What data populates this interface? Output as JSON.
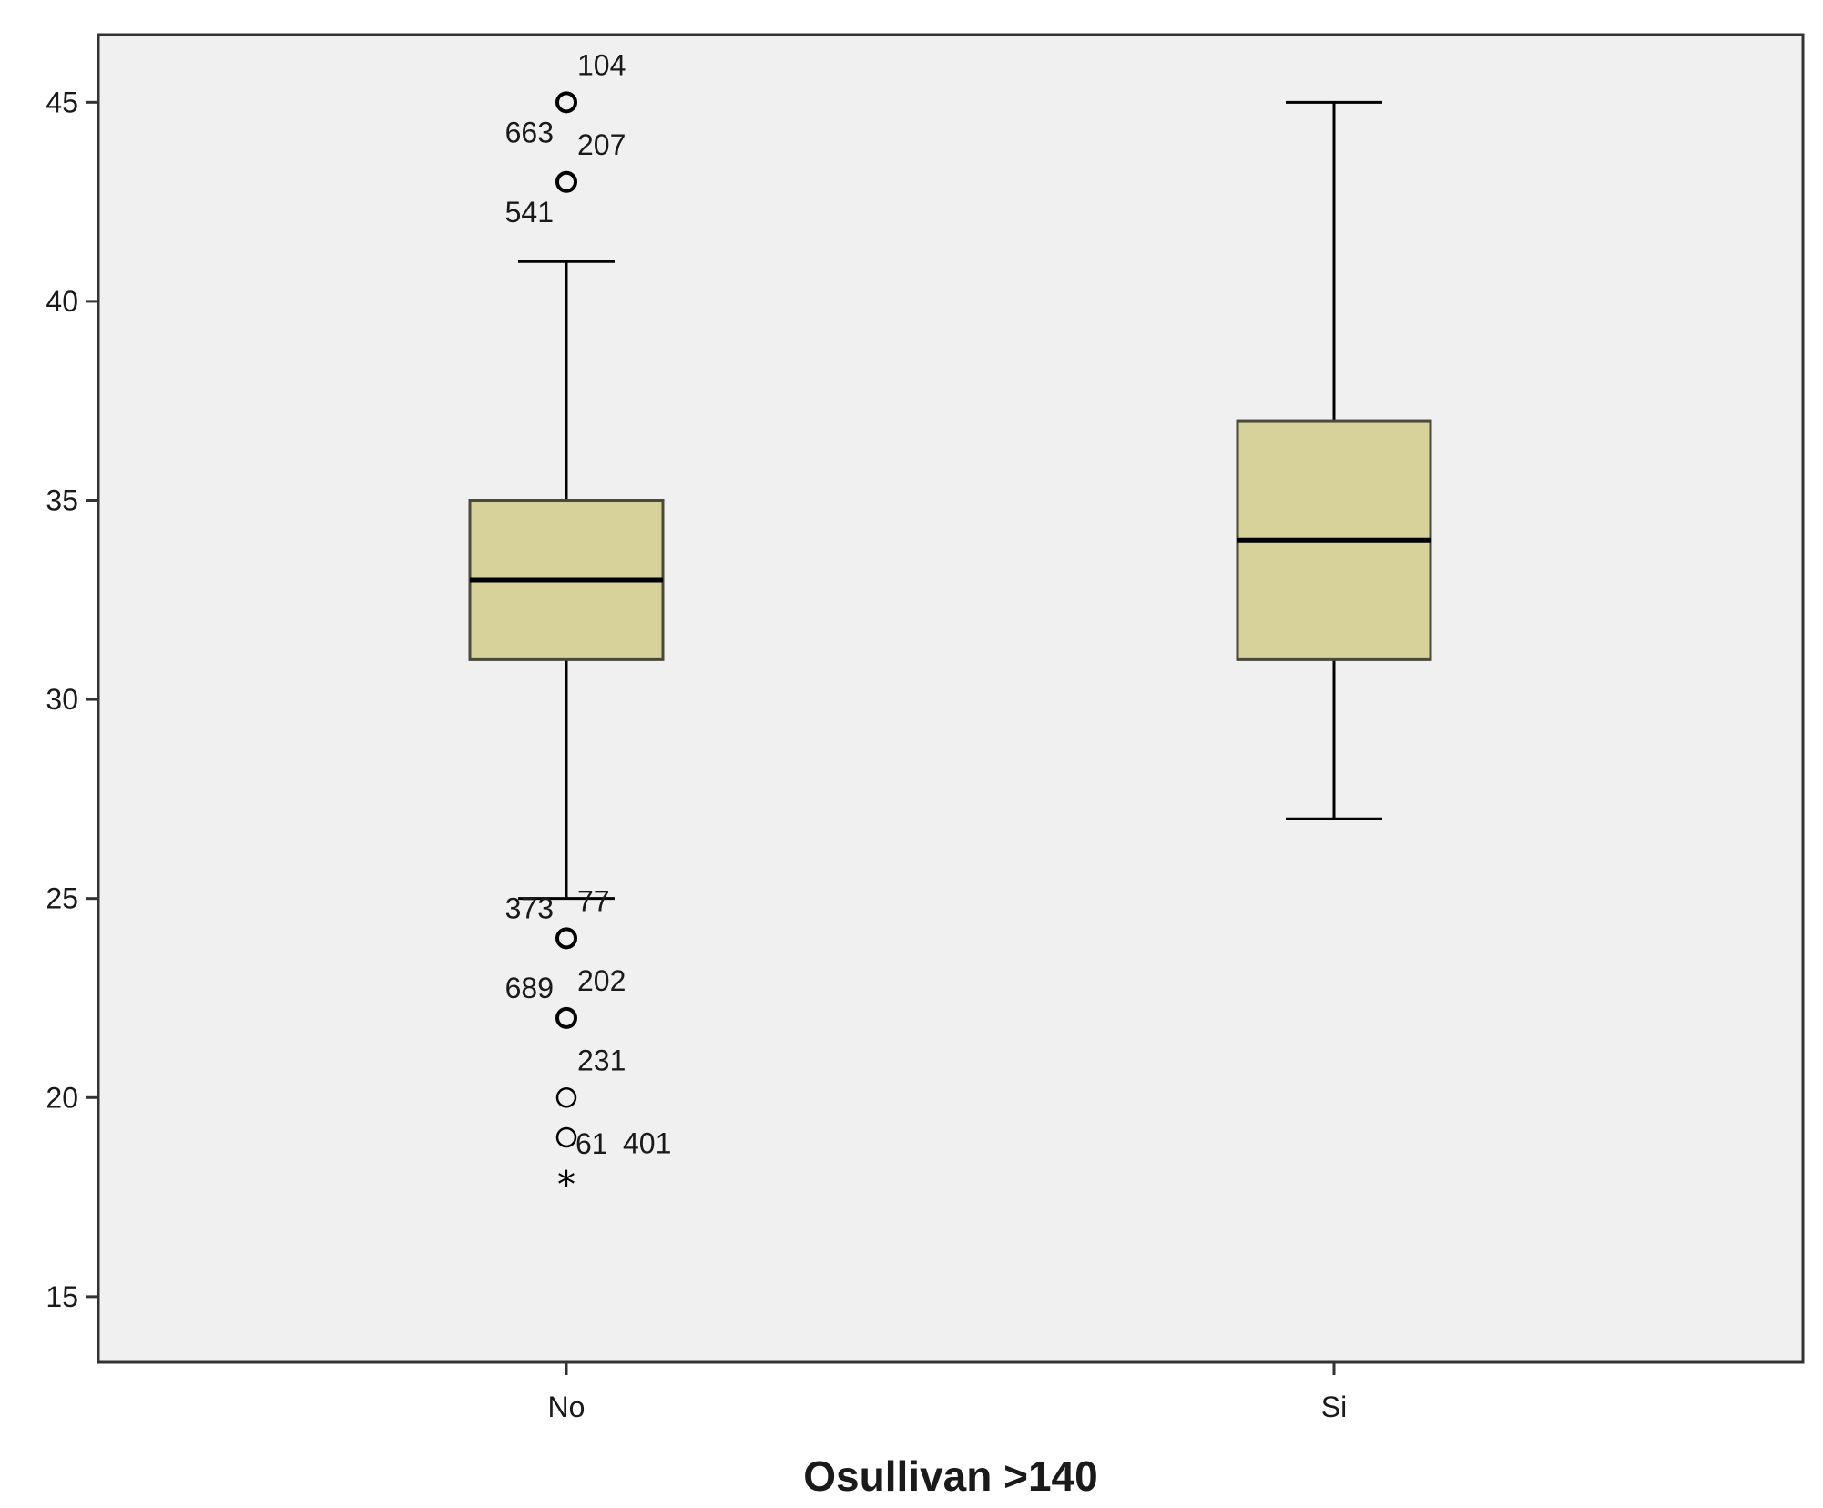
{
  "chart_data": {
    "type": "boxplot",
    "title": "",
    "xlabel": "Osullivan >140",
    "ylabel": "",
    "ylim": [
      13.35,
      46.7
    ],
    "yticks": [
      15,
      20,
      25,
      30,
      35,
      40,
      45
    ],
    "categories": [
      "No",
      "Si"
    ],
    "grid": false,
    "legend": "none",
    "colors": {
      "plot_background": "#f0f0f0",
      "box_fill": "#d7d19a",
      "line": "#000000"
    },
    "boxes": [
      {
        "category": "No",
        "min": 25,
        "q1": 31,
        "median": 33,
        "q3": 35,
        "max": 41,
        "outliers": [
          {
            "value": 45,
            "symbol": "circle",
            "labels": [
              "104",
              "663"
            ]
          },
          {
            "value": 43,
            "symbol": "circle",
            "labels": [
              "207",
              "541"
            ]
          },
          {
            "value": 24,
            "symbol": "circle",
            "labels": [
              "77",
              "373"
            ]
          },
          {
            "value": 22,
            "symbol": "circle",
            "labels": [
              "202",
              "689"
            ]
          },
          {
            "value": 20,
            "symbol": "circle",
            "labels": [
              "231"
            ]
          },
          {
            "value": 19,
            "symbol": "circle",
            "labels": [
              "61"
            ]
          },
          {
            "value": 18,
            "symbol": "star",
            "labels": [
              "401"
            ]
          }
        ]
      },
      {
        "category": "Si",
        "min": 27,
        "q1": 31,
        "median": 34,
        "q3": 37,
        "max": 45,
        "outliers": []
      }
    ]
  }
}
